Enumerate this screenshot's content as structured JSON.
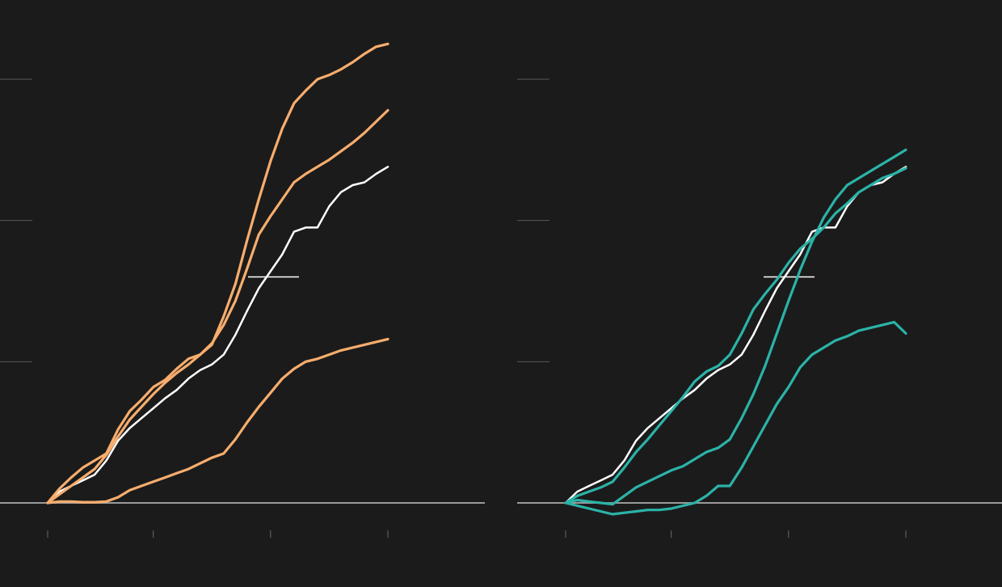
{
  "colors": {
    "background": "#1b1b1b",
    "baseline": "#9a9a9a",
    "gridline": "#5a5a5a",
    "tick": "#6a6a6a",
    "reference": "#ffffff",
    "left_series": "#f7ad6d",
    "right_series": "#2bb3a8"
  },
  "chart_data": [
    {
      "type": "line",
      "title": "",
      "xlabel": "",
      "ylabel": "",
      "xlim": [
        0,
        58
      ],
      "ylim": [
        0,
        3
      ],
      "grid": true,
      "legend": "none",
      "x_ticks": [
        0,
        18,
        38,
        58
      ],
      "y_gridlines": [
        1,
        2,
        3
      ],
      "reference_marker": 1.6,
      "reference_series": {
        "color": "#ffffff",
        "x": [
          0,
          2,
          4,
          6,
          8,
          10,
          12,
          14,
          16,
          18,
          20,
          22,
          24,
          26,
          28,
          30,
          32,
          34,
          36,
          38,
          40,
          42,
          44,
          46,
          48,
          50,
          52,
          54,
          56,
          58
        ],
        "values": [
          0,
          0.08,
          0.12,
          0.16,
          0.2,
          0.3,
          0.44,
          0.53,
          0.6,
          0.67,
          0.74,
          0.8,
          0.88,
          0.94,
          0.98,
          1.05,
          1.19,
          1.36,
          1.52,
          1.64,
          1.76,
          1.92,
          1.95,
          1.95,
          2.1,
          2.2,
          2.25,
          2.27,
          2.33,
          2.38
        ]
      },
      "series": [
        {
          "color": "#f7ad6d",
          "x": [
            0,
            2,
            4,
            6,
            8,
            10,
            12,
            14,
            16,
            18,
            20,
            22,
            24,
            26,
            28,
            30,
            32,
            34,
            36,
            38,
            40,
            42,
            44,
            46,
            48,
            50,
            52,
            54,
            56,
            58
          ],
          "values": [
            0,
            0.1,
            0.18,
            0.25,
            0.3,
            0.35,
            0.52,
            0.65,
            0.73,
            0.82,
            0.87,
            0.95,
            1.02,
            1.05,
            1.12,
            1.32,
            1.55,
            1.86,
            2.15,
            2.42,
            2.65,
            2.83,
            2.92,
            3.0,
            3.03,
            3.07,
            3.12,
            3.18,
            3.23,
            3.25
          ]
        },
        {
          "color": "#f7ad6d",
          "x": [
            0,
            2,
            4,
            6,
            8,
            10,
            12,
            14,
            16,
            18,
            20,
            22,
            24,
            26,
            28,
            30,
            32,
            34,
            36,
            38,
            40,
            42,
            44,
            46,
            48,
            50,
            52,
            54,
            56,
            58
          ],
          "values": [
            0,
            0.06,
            0.12,
            0.18,
            0.24,
            0.34,
            0.47,
            0.59,
            0.68,
            0.77,
            0.85,
            0.92,
            0.98,
            1.05,
            1.13,
            1.26,
            1.43,
            1.66,
            1.9,
            2.03,
            2.15,
            2.27,
            2.33,
            2.38,
            2.43,
            2.49,
            2.55,
            2.62,
            2.7,
            2.78
          ]
        },
        {
          "color": "#f7ad6d",
          "x": [
            0,
            2,
            4,
            6,
            8,
            10,
            12,
            14,
            16,
            18,
            20,
            22,
            24,
            26,
            28,
            30,
            32,
            34,
            36,
            38,
            40,
            42,
            44,
            46,
            48,
            50,
            52,
            54,
            56,
            58
          ],
          "values": [
            0,
            0.01,
            0.01,
            0.005,
            0.005,
            0.01,
            0.04,
            0.09,
            0.12,
            0.15,
            0.18,
            0.21,
            0.24,
            0.28,
            0.32,
            0.35,
            0.45,
            0.57,
            0.68,
            0.78,
            0.88,
            0.95,
            1.0,
            1.02,
            1.05,
            1.08,
            1.1,
            1.12,
            1.14,
            1.16
          ]
        }
      ]
    },
    {
      "type": "line",
      "title": "",
      "xlabel": "",
      "ylabel": "",
      "xlim": [
        0,
        58
      ],
      "ylim": [
        0,
        3
      ],
      "grid": true,
      "legend": "none",
      "x_ticks": [
        0,
        18,
        38,
        58
      ],
      "y_gridlines": [
        1,
        2,
        3
      ],
      "reference_marker": 1.6,
      "reference_series": {
        "color": "#ffffff",
        "x": [
          0,
          2,
          4,
          6,
          8,
          10,
          12,
          14,
          16,
          18,
          20,
          22,
          24,
          26,
          28,
          30,
          32,
          34,
          36,
          38,
          40,
          42,
          44,
          46,
          48,
          50,
          52,
          54,
          56,
          58
        ],
        "values": [
          0,
          0.08,
          0.12,
          0.16,
          0.2,
          0.3,
          0.44,
          0.53,
          0.6,
          0.67,
          0.74,
          0.8,
          0.88,
          0.94,
          0.98,
          1.05,
          1.19,
          1.36,
          1.52,
          1.64,
          1.76,
          1.92,
          1.95,
          1.95,
          2.1,
          2.2,
          2.25,
          2.27,
          2.33,
          2.38
        ]
      },
      "series": [
        {
          "color": "#2bb3a8",
          "x": [
            0,
            2,
            4,
            6,
            8,
            10,
            12,
            14,
            16,
            18,
            20,
            22,
            24,
            26,
            28,
            30,
            32,
            34,
            36,
            38,
            40,
            42,
            44,
            46,
            48,
            50,
            52,
            54,
            56,
            58
          ],
          "values": [
            0,
            0.05,
            0.08,
            0.11,
            0.15,
            0.25,
            0.36,
            0.45,
            0.55,
            0.65,
            0.75,
            0.86,
            0.93,
            0.97,
            1.05,
            1.2,
            1.37,
            1.48,
            1.58,
            1.7,
            1.8,
            1.87,
            1.95,
            2.05,
            2.12,
            2.2,
            2.25,
            2.3,
            2.33,
            2.37
          ]
        },
        {
          "color": "#2bb3a8",
          "x": [
            0,
            2,
            4,
            6,
            8,
            10,
            12,
            14,
            16,
            18,
            20,
            22,
            24,
            26,
            28,
            30,
            32,
            34,
            36,
            38,
            40,
            42,
            44,
            46,
            48,
            50,
            52,
            54,
            56,
            58
          ],
          "values": [
            0,
            0.02,
            0.01,
            0.0,
            -0.01,
            0.05,
            0.11,
            0.15,
            0.19,
            0.23,
            0.26,
            0.31,
            0.36,
            0.39,
            0.45,
            0.6,
            0.77,
            0.97,
            1.2,
            1.43,
            1.65,
            1.85,
            2.02,
            2.15,
            2.25,
            2.3,
            2.35,
            2.4,
            2.45,
            2.5
          ]
        },
        {
          "color": "#2bb3a8",
          "x": [
            0,
            2,
            4,
            6,
            8,
            10,
            12,
            14,
            16,
            18,
            20,
            22,
            24,
            26,
            28,
            30,
            32,
            34,
            36,
            38,
            40,
            42,
            44,
            46,
            48,
            50,
            52,
            54,
            56,
            58
          ],
          "values": [
            0,
            -0.02,
            -0.04,
            -0.06,
            -0.08,
            -0.07,
            -0.06,
            -0.05,
            -0.05,
            -0.04,
            -0.02,
            0.0,
            0.05,
            0.12,
            0.12,
            0.25,
            0.4,
            0.55,
            0.7,
            0.82,
            0.96,
            1.05,
            1.1,
            1.15,
            1.18,
            1.22,
            1.24,
            1.26,
            1.28,
            1.2
          ]
        }
      ]
    }
  ]
}
